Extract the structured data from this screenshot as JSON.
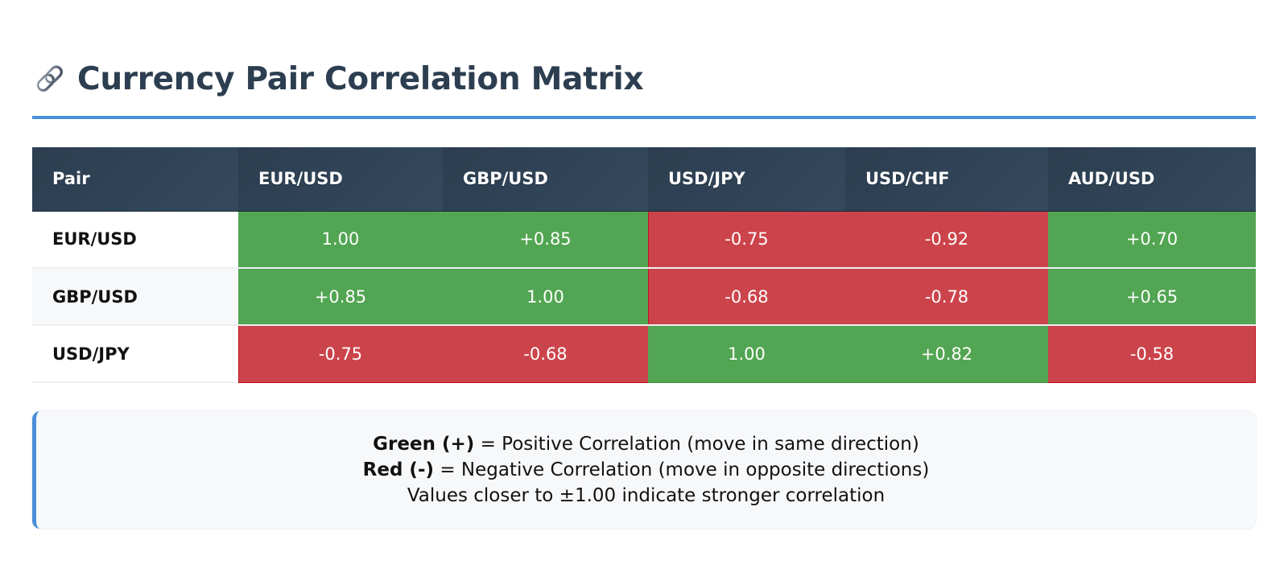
{
  "header": {
    "icon": "link-icon",
    "title": "Currency Pair Correlation Matrix"
  },
  "colors": {
    "accent": "#4a90d9",
    "header_bg": "#2c3e50",
    "positive": "#52a552",
    "negative": "#cc444b"
  },
  "table": {
    "columns": [
      "Pair",
      "EUR/USD",
      "GBP/USD",
      "USD/JPY",
      "USD/CHF",
      "AUD/USD"
    ],
    "rows": [
      {
        "pair": "EUR/USD",
        "values": [
          "1.00",
          "+0.85",
          "-0.75",
          "-0.92",
          "+0.70"
        ]
      },
      {
        "pair": "GBP/USD",
        "values": [
          "+0.85",
          "1.00",
          "-0.68",
          "-0.78",
          "+0.65"
        ]
      },
      {
        "pair": "USD/JPY",
        "values": [
          "-0.75",
          "-0.68",
          "1.00",
          "+0.82",
          "-0.58"
        ]
      }
    ]
  },
  "legend": {
    "green_label": "Green (+)",
    "green_text": " = Positive Correlation (move in same direction)",
    "red_label": "Red (-)",
    "red_text": " = Negative Correlation (move in opposite directions)",
    "note": "Values closer to ±1.00 indicate stronger correlation"
  }
}
